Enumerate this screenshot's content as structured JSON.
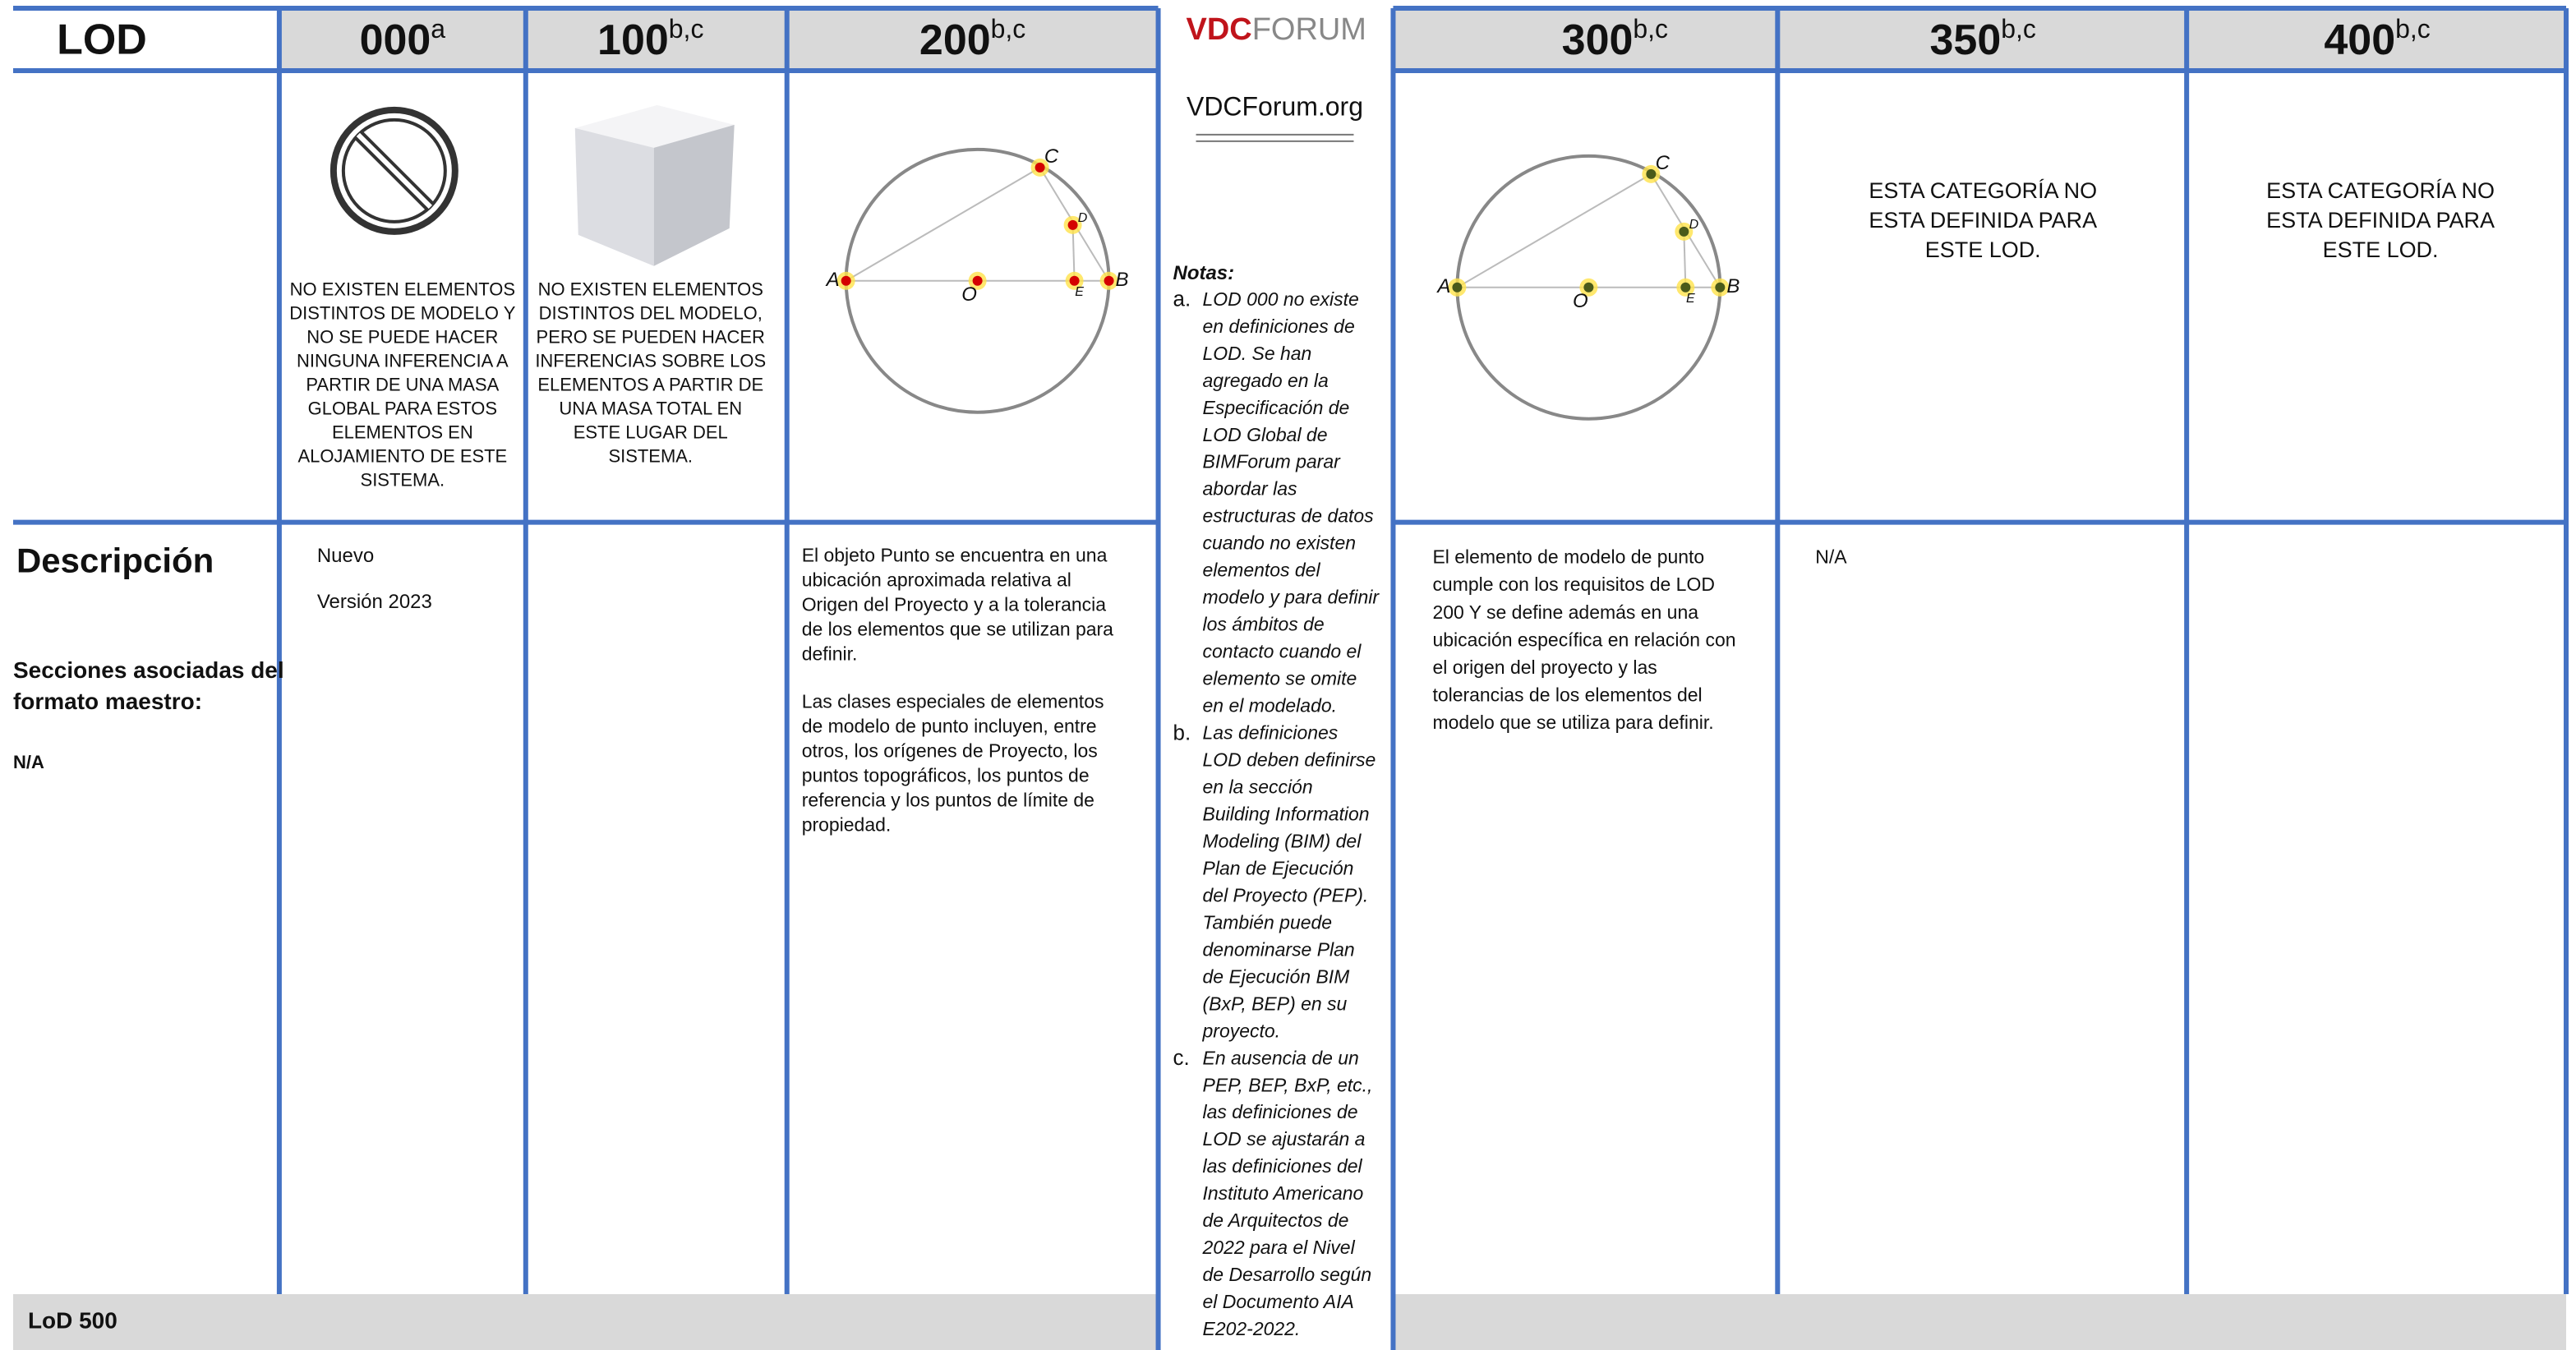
{
  "header": {
    "lod": "LOD",
    "columns": [
      {
        "main": "000",
        "sup": "a"
      },
      {
        "main": "100",
        "sup": "b,c"
      },
      {
        "main": "200",
        "sup": "b,c"
      },
      {
        "main": "300",
        "sup": "b,c"
      },
      {
        "main": "350",
        "sup": "b,c"
      },
      {
        "main": "400",
        "sup": "b,c"
      }
    ]
  },
  "logo": {
    "vdc": "VDC",
    "forum": "FORUM",
    "url": "VDCForum.org"
  },
  "image_row": {
    "lod_000": [
      "NO EXISTEN ELEMENTOS",
      "DISTINTOS DE MODELO  Y",
      "NO SE PUEDE HACER",
      "NINGUNA INFERENCIA A",
      "PARTIR DE UNA MASA",
      "GLOBAL PARA ESTOS",
      "ELEMENTOS EN",
      "ALOJAMIENTO DE ESTE",
      "SISTEMA."
    ],
    "lod_100": [
      "NO EXISTEN ELEMENTOS",
      "DISTINTOS DEL MODELO,",
      "PERO SE PUEDEN HACER",
      "INFERENCIAS SOBRE LOS",
      "ELEMENTOS A PARTIR DE",
      "UNA MASA TOTAL EN",
      "ESTE LUGAR DEL",
      "SISTEMA."
    ],
    "lod_350": [
      "ESTA CATEGORÍA NO",
      "ESTA DEFINIDA PARA",
      "ESTE LOD."
    ],
    "lod_400": [
      "ESTA CATEGORÍA NO",
      "ESTA DEFINIDA PARA",
      "ESTE LOD."
    ],
    "diagram_labels": [
      "A",
      "O",
      "E",
      "D",
      "C",
      "B"
    ]
  },
  "description": {
    "title": "Descripción",
    "sections_title": [
      "Secciones asociadas del",
      "formato maestro:"
    ],
    "sections_value": "N/A",
    "lod_000": [
      "Nuevo",
      "Versión 2023"
    ],
    "lod_200": [
      [
        "El objeto Punto se encuentra en una",
        "ubicación aproximada  relativa al",
        "Origen del Proyecto y a la tolerancia",
        "de los elementos que se utilizan para",
        "definir."
      ],
      [
        "Las clases especiales de elementos",
        "de modelo de punto incluyen, entre",
        "otros, los orígenes de Proyecto, los",
        "puntos topográficos, los puntos de",
        "referencia y los puntos de límite de",
        "propiedad."
      ]
    ],
    "lod_300": [
      "El elemento de modelo de punto",
      "cumple con los requisitos de LOD",
      "200 Y se define además en una",
      "ubicación específica en relación con",
      "el origen del proyecto y las",
      "tolerancias de los elementos del",
      "modelo que se utiliza para definir."
    ],
    "lod_350": "N/A"
  },
  "notes": {
    "title": "Notas:",
    "items": [
      {
        "marker": "a.",
        "lines": [
          "LOD 000 no existe",
          "en definiciones de",
          "LOD. Se han",
          "agregado en la",
          "Especificación de",
          "LOD Global de",
          "BIMForum parar",
          "abordar las",
          "estructuras de datos",
          "cuando no existen",
          "elementos del",
          "modelo y para definir",
          "los ámbitos de",
          "contacto cuando el",
          "elemento se omite",
          "en el modelado."
        ]
      },
      {
        "marker": "b.",
        "lines": [
          "Las definiciones",
          "LOD deben definirse",
          "en la sección",
          "Building Information",
          "Modeling (BIM) del",
          "Plan de Ejecución",
          "del Proyecto (PEP).",
          "También puede",
          "denominarse Plan",
          "de Ejecución BIM",
          "(BxP, BEP) en su",
          "proyecto."
        ]
      },
      {
        "marker": "c.",
        "lines": [
          "En ausencia de un",
          "PEP, BEP, BxP, etc.,",
          "las definiciones de",
          "LOD se ajustarán a",
          "las definiciones del",
          "Instituto Americano",
          "de Arquitectos de",
          "2022 para el Nivel",
          "de Desarrollo según",
          "el Documento AIA",
          "E202-2022."
        ]
      }
    ]
  },
  "footer": "LoD 500"
}
